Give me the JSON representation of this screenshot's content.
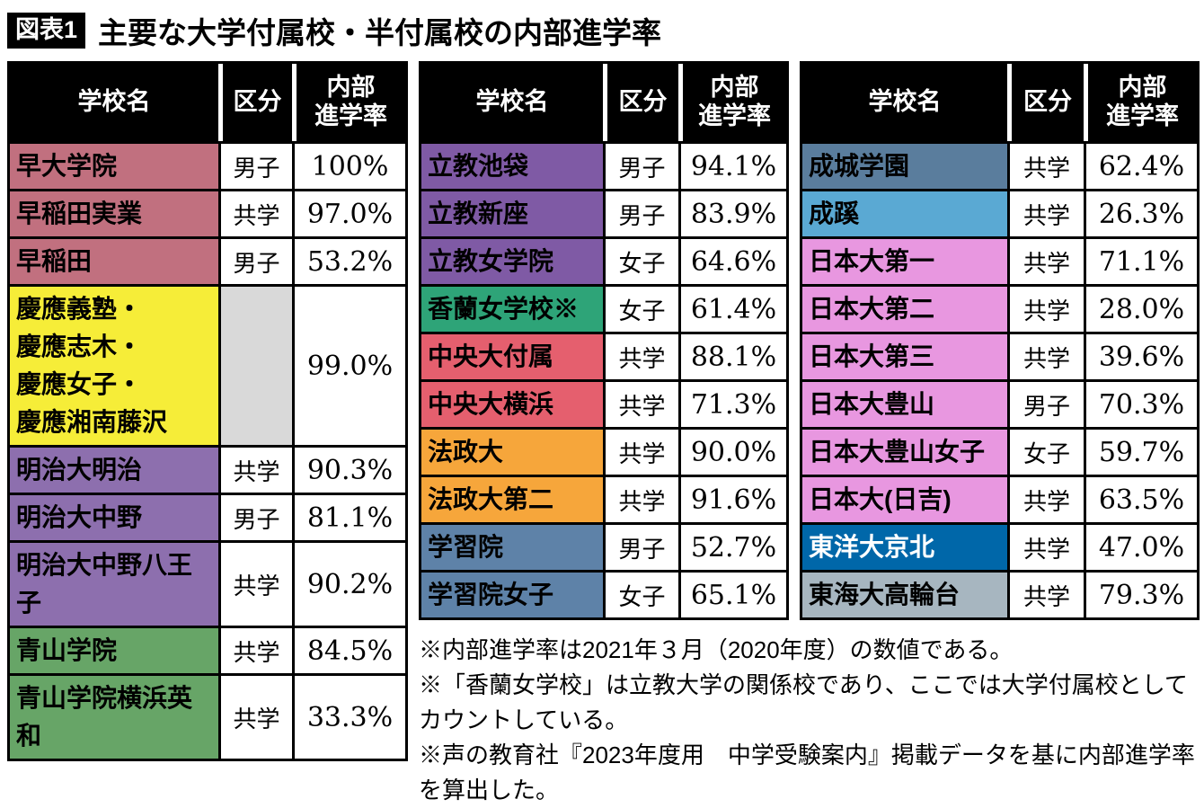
{
  "chart_data": {
    "type": "table",
    "title_badge": "図表1",
    "title": "主要な大学付属校・半付属校の内部進学率",
    "columns": [
      "学校名",
      "区分",
      "内部進学率"
    ],
    "rate_header_display": "内部\n進学率",
    "legend_colors": {
      "waseda": "#c1707f",
      "keio": "#f6ed38",
      "meiji": "#8d6fae",
      "aoyama": "#67a567",
      "rikkyo": "#7f5aa5",
      "koran": "#2ea478",
      "chuo": "#e55f6e",
      "hosei": "#f6a63b",
      "gakushuin": "#5e82a8",
      "seijo": "#5a7d9d",
      "seikei": "#5aa9d3",
      "nihon": "#e897e0",
      "toyo": "#0067a9",
      "tokai": "#a7b6c0"
    },
    "tables": [
      {
        "rows": [
          {
            "name": "早大学院",
            "type": "男子",
            "rate": "100%",
            "color": "#c1707f"
          },
          {
            "name": "早稲田実業",
            "type": "共学",
            "rate": "97.0%",
            "color": "#c1707f"
          },
          {
            "name": "早稲田",
            "type": "男子",
            "rate": "53.2%",
            "color": "#c1707f"
          },
          {
            "name": "慶應義塾・\n慶應志木・\n慶應女子・\n慶應湘南藤沢",
            "type": "",
            "rate": "99.0%",
            "color": "#f6ed38",
            "type_bg": "#d9d9d9"
          },
          {
            "name": "明治大明治",
            "type": "共学",
            "rate": "90.3%",
            "color": "#8d6fae"
          },
          {
            "name": "明治大中野",
            "type": "男子",
            "rate": "81.1%",
            "color": "#8d6fae"
          },
          {
            "name": "明治大中野八王子",
            "type": "共学",
            "rate": "90.2%",
            "color": "#8d6fae"
          },
          {
            "name": "青山学院",
            "type": "共学",
            "rate": "84.5%",
            "color": "#67a567"
          },
          {
            "name": "青山学院横浜英和",
            "type": "共学",
            "rate": "33.3%",
            "color": "#67a567"
          }
        ]
      },
      {
        "rows": [
          {
            "name": "立教池袋",
            "type": "男子",
            "rate": "94.1%",
            "color": "#7f5aa5"
          },
          {
            "name": "立教新座",
            "type": "男子",
            "rate": "83.9%",
            "color": "#7f5aa5"
          },
          {
            "name": "立教女学院",
            "type": "女子",
            "rate": "64.6%",
            "color": "#7f5aa5"
          },
          {
            "name": "香蘭女学校※",
            "type": "女子",
            "rate": "61.4%",
            "color": "#2ea478"
          },
          {
            "name": "中央大付属",
            "type": "共学",
            "rate": "88.1%",
            "color": "#e55f6e"
          },
          {
            "name": "中央大横浜",
            "type": "共学",
            "rate": "71.3%",
            "color": "#e55f6e"
          },
          {
            "name": "法政大",
            "type": "共学",
            "rate": "90.0%",
            "color": "#f6a63b"
          },
          {
            "name": "法政大第二",
            "type": "共学",
            "rate": "91.6%",
            "color": "#f6a63b"
          },
          {
            "name": "学習院",
            "type": "男子",
            "rate": "52.7%",
            "color": "#5e82a8"
          },
          {
            "name": "学習院女子",
            "type": "女子",
            "rate": "65.1%",
            "color": "#5e82a8"
          }
        ]
      },
      {
        "rows": [
          {
            "name": "成城学園",
            "type": "共学",
            "rate": "62.4%",
            "color": "#5a7d9d"
          },
          {
            "name": "成蹊",
            "type": "共学",
            "rate": "26.3%",
            "color": "#5aa9d3"
          },
          {
            "name": "日本大第一",
            "type": "共学",
            "rate": "71.1%",
            "color": "#e897e0"
          },
          {
            "name": "日本大第二",
            "type": "共学",
            "rate": "28.0%",
            "color": "#e897e0"
          },
          {
            "name": "日本大第三",
            "type": "共学",
            "rate": "39.6%",
            "color": "#e897e0"
          },
          {
            "name": "日本大豊山",
            "type": "男子",
            "rate": "70.3%",
            "color": "#e897e0"
          },
          {
            "name": "日本大豊山女子",
            "type": "女子",
            "rate": "59.7%",
            "color": "#e897e0"
          },
          {
            "name": "日本大(日吉)",
            "type": "共学",
            "rate": "63.5%",
            "color": "#e897e0"
          },
          {
            "name": "東洋大京北",
            "type": "共学",
            "rate": "47.0%",
            "color": "#0067a9",
            "text_color": "#ffffff"
          },
          {
            "name": "東海大高輪台",
            "type": "共学",
            "rate": "79.3%",
            "color": "#a7b6c0"
          }
        ]
      }
    ],
    "notes": [
      "※内部進学率は2021年３月（2020年度）の数値である。",
      "※「香蘭女学校」は立教大学の関係校であり、ここでは大学付属校としてカウントしている。",
      "※声の教育社『2023年度用　中学受験案内』掲載データを基に内部進学率を算出した。"
    ]
  }
}
